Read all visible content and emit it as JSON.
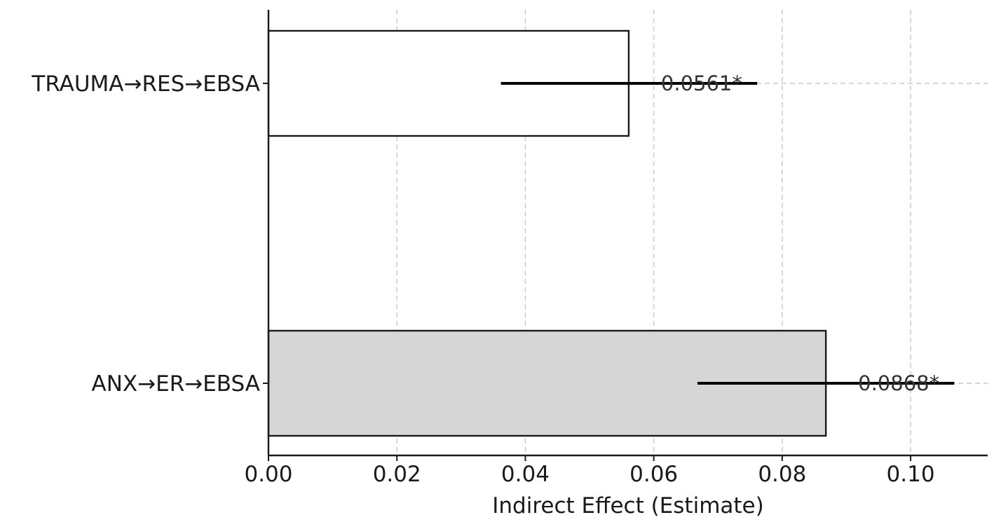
{
  "chart_data": {
    "type": "bar",
    "orientation": "horizontal",
    "categories": [
      "TRAUMA→RES→EBSA",
      "ANX→ER→EBSA"
    ],
    "values": [
      0.0561,
      0.0868
    ],
    "ci": [
      [
        0.0362,
        0.0761
      ],
      [
        0.0668,
        0.1068
      ]
    ],
    "data_labels": [
      "0.0561*",
      "0.0868*"
    ],
    "bar_fills": [
      "#ffffff",
      "#d6d6d6"
    ],
    "xlabel": "Indirect Effect (Estimate)",
    "ylabel": "",
    "title": "",
    "xlim": [
      0,
      0.112
    ],
    "xticks": [
      0.0,
      0.02,
      0.04,
      0.06,
      0.08,
      0.1
    ],
    "xtick_labels": [
      "0.00",
      "0.02",
      "0.04",
      "0.06",
      "0.08",
      "0.10"
    ],
    "grid": true,
    "legend": "none"
  }
}
